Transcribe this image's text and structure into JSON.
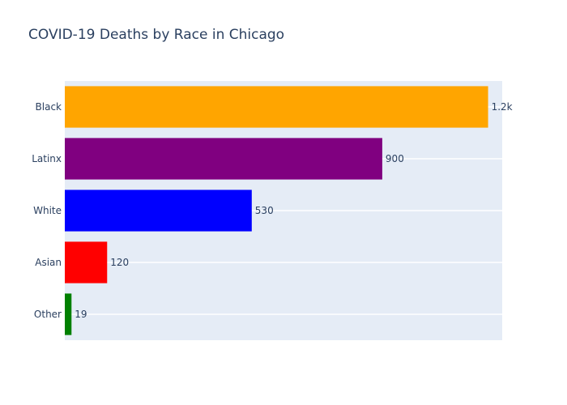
{
  "chart_data": {
    "type": "bar",
    "orientation": "horizontal",
    "title": "COVID-19 Deaths by Race in Chicago",
    "xlabel": "",
    "ylabel": "",
    "categories": [
      "Black",
      "Latinx",
      "White",
      "Asian",
      "Other"
    ],
    "values": [
      1200,
      900,
      530,
      120,
      19
    ],
    "data_labels": [
      "1.2k",
      "900",
      "530",
      "120",
      "19"
    ],
    "colors": [
      "#FFA500",
      "#800080",
      "#0000FF",
      "#FF0000",
      "#008000"
    ],
    "xlim": [
      0,
      1240
    ],
    "grid": true,
    "legend": "none",
    "background": "#E5ECF6"
  }
}
